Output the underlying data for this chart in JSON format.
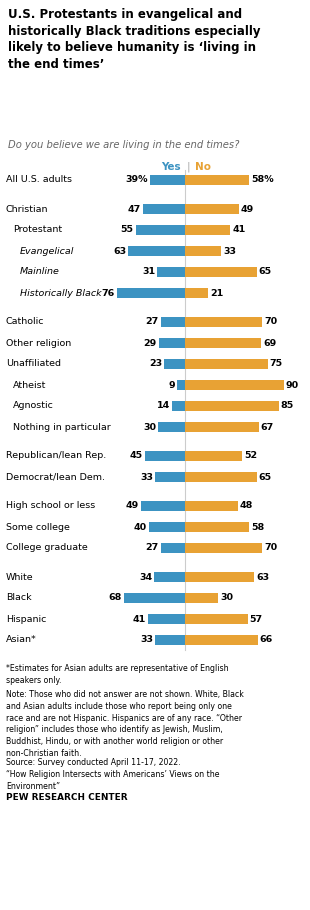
{
  "title": "U.S. Protestants in evangelical and\nhistorically Black traditions especially\nlikely to believe humanity is ‘living in\nthe end times’",
  "subtitle": "Do you believe we are living in the end times?",
  "categories": [
    "All U.S. adults",
    "Christian",
    "Protestant",
    "Evangelical",
    "Mainline",
    "Historically Black",
    "Catholic",
    "Other religion",
    "Unaffiliated",
    "Atheist",
    "Agnostic",
    "Nothing in particular",
    "Republican/lean Rep.",
    "Democrat/lean Dem.",
    "High school or less",
    "Some college",
    "College graduate",
    "White",
    "Black",
    "Hispanic",
    "Asian*"
  ],
  "yes_values": [
    39,
    47,
    55,
    63,
    31,
    76,
    27,
    29,
    23,
    9,
    14,
    30,
    45,
    33,
    49,
    40,
    27,
    34,
    68,
    41,
    33
  ],
  "no_values": [
    58,
    49,
    41,
    33,
    65,
    21,
    70,
    69,
    75,
    90,
    85,
    67,
    52,
    65,
    48,
    58,
    70,
    63,
    30,
    57,
    66
  ],
  "yes_color": "#3c93c2",
  "no_color": "#e8a234",
  "indent_levels": [
    0,
    0,
    1,
    2,
    2,
    2,
    0,
    0,
    0,
    1,
    1,
    1,
    0,
    0,
    0,
    0,
    0,
    0,
    0,
    0,
    0
  ],
  "italic_rows": [
    3,
    4,
    5
  ],
  "gap_after_indices": [
    0,
    5,
    11,
    13,
    16
  ],
  "has_percent_row": [
    0
  ],
  "footnote1": "*Estimates for Asian adults are representative of English\nspeakers only.",
  "footnote2": "Note: Those who did not answer are not shown. White, Black\nand Asian adults include those who report being only one\nrace and are not Hispanic. Hispanics are of any race. “Other\nreligion” includes those who identify as Jewish, Muslim,\nBuddhist, Hindu, or with another world religion or other\nnon-Christian faith.",
  "source": "Source: Survey conducted April 11-17, 2022.\n“How Religion Intersects with Americans’ Views on the\nEnvironment”",
  "credit": "PEW RESEARCH CENTER"
}
